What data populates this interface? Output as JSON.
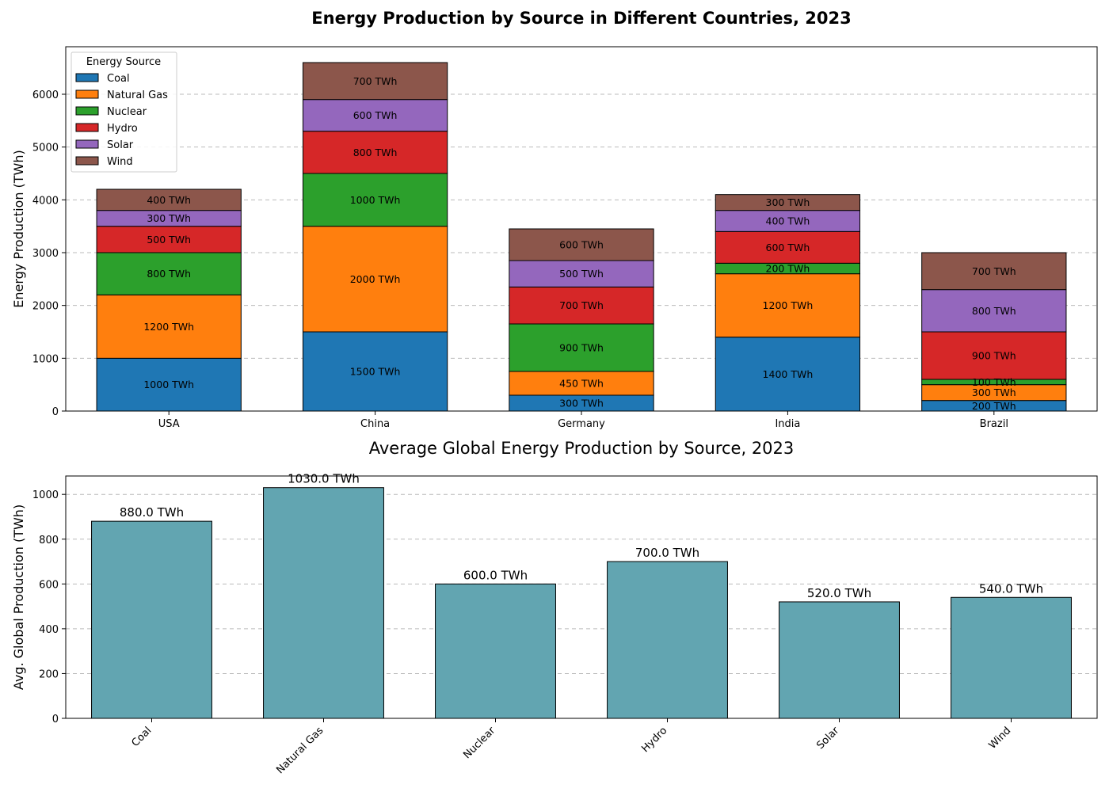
{
  "chart_data": [
    {
      "type": "bar",
      "stacked": true,
      "title": "Energy Production by Source in Different Countries, 2023",
      "xlabel": "",
      "ylabel": "Energy Production (TWh)",
      "ylim": [
        0,
        6900
      ],
      "yticks": [
        0,
        1000,
        2000,
        3000,
        4000,
        5000,
        6000
      ],
      "grid": "y-dashed",
      "legend": {
        "title": "Energy Source",
        "placement": "top-left"
      },
      "categories": [
        "USA",
        "China",
        "Germany",
        "India",
        "Brazil"
      ],
      "series": [
        {
          "name": "Coal",
          "color": "#1f77b4",
          "values": [
            1000,
            1500,
            300,
            1400,
            200
          ]
        },
        {
          "name": "Natural Gas",
          "color": "#ff7f0e",
          "values": [
            1200,
            2000,
            450,
            1200,
            300
          ]
        },
        {
          "name": "Nuclear",
          "color": "#2ca02c",
          "values": [
            800,
            1000,
            900,
            200,
            100
          ]
        },
        {
          "name": "Hydro",
          "color": "#d62728",
          "values": [
            500,
            800,
            700,
            600,
            900
          ]
        },
        {
          "name": "Solar",
          "color": "#9467bd",
          "values": [
            300,
            600,
            500,
            400,
            800
          ]
        },
        {
          "name": "Wind",
          "color": "#8c564b",
          "values": [
            400,
            700,
            600,
            300,
            700
          ]
        }
      ],
      "value_label_suffix": " TWh"
    },
    {
      "type": "bar",
      "title": "Average Global Energy Production by Source, 2023",
      "xlabel": "",
      "ylabel": "Avg. Global Production (TWh)",
      "ylim": [
        0,
        1082
      ],
      "yticks": [
        0,
        200,
        400,
        600,
        800,
        1000
      ],
      "grid": "y-dashed",
      "bar_color": "#62a5b1",
      "categories": [
        "Coal",
        "Natural Gas",
        "Nuclear",
        "Hydro",
        "Solar",
        "Wind"
      ],
      "values": [
        880.0,
        1030.0,
        600.0,
        700.0,
        520.0,
        540.0
      ],
      "data_labels": [
        "880.0 TWh",
        "1030.0 TWh",
        "600.0 TWh",
        "700.0 TWh",
        "520.0 TWh",
        "540.0 TWh"
      ]
    }
  ]
}
